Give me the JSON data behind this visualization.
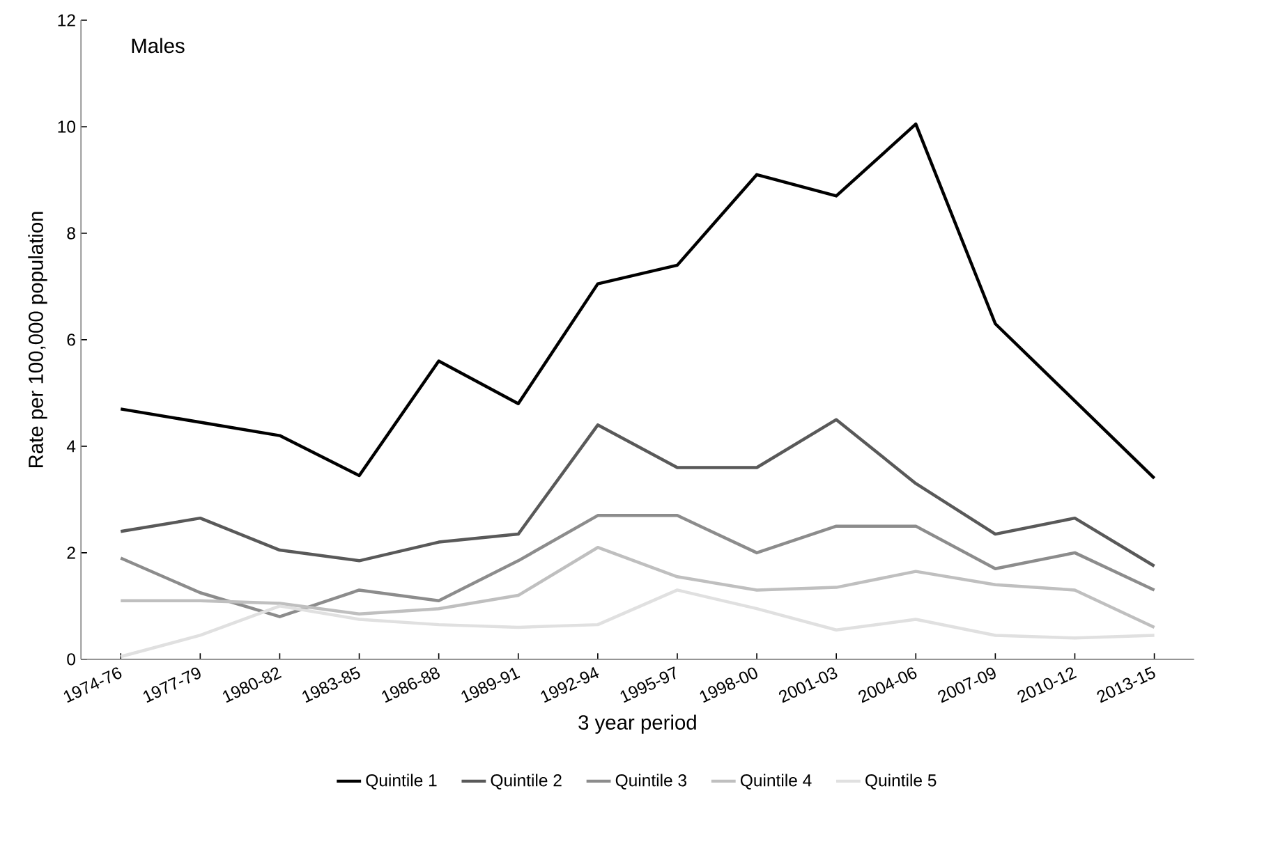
{
  "chart_data": {
    "type": "line",
    "title": "Males",
    "xlabel": "3 year period",
    "ylabel": "Rate per 100,000 population",
    "categories": [
      "1974-76",
      "1977-79",
      "1980-82",
      "1983-85",
      "1986-88",
      "1989-91",
      "1992-94",
      "1995-97",
      "1998-00",
      "2001-03",
      "2004-06",
      "2007-09",
      "2010-12",
      "2013-15"
    ],
    "series": [
      {
        "name": "Quintile 1",
        "color": "#000000",
        "values": [
          4.7,
          4.45,
          4.2,
          3.45,
          5.6,
          4.8,
          7.05,
          7.4,
          9.1,
          8.7,
          10.05,
          6.3,
          4.85,
          3.4
        ]
      },
      {
        "name": "Quintile 2",
        "color": "#595959",
        "values": [
          2.4,
          2.65,
          2.05,
          1.85,
          2.2,
          2.35,
          4.4,
          3.6,
          3.6,
          4.5,
          3.3,
          2.35,
          2.65,
          1.75
        ]
      },
      {
        "name": "Quintile 3",
        "color": "#8c8c8c",
        "values": [
          1.9,
          1.25,
          0.8,
          1.3,
          1.1,
          1.85,
          2.7,
          2.7,
          2.0,
          2.5,
          2.5,
          1.7,
          2.0,
          1.3
        ]
      },
      {
        "name": "Quintile 4",
        "color": "#bfbfbf",
        "values": [
          1.1,
          1.1,
          1.05,
          0.85,
          0.95,
          1.2,
          2.1,
          1.55,
          1.3,
          1.35,
          1.65,
          1.4,
          1.3,
          0.6
        ]
      },
      {
        "name": "Quintile 5",
        "color": "#e0e0e0",
        "values": [
          0.05,
          0.45,
          1.0,
          0.75,
          0.65,
          0.6,
          0.65,
          1.3,
          0.95,
          0.55,
          0.75,
          0.45,
          0.4,
          0.45
        ]
      }
    ],
    "ylim": [
      0,
      12
    ],
    "yticks": [
      0,
      2,
      4,
      6,
      8,
      10,
      12
    ],
    "grid": false,
    "legend": "bottom",
    "marker": "none",
    "line_style": "solid"
  }
}
